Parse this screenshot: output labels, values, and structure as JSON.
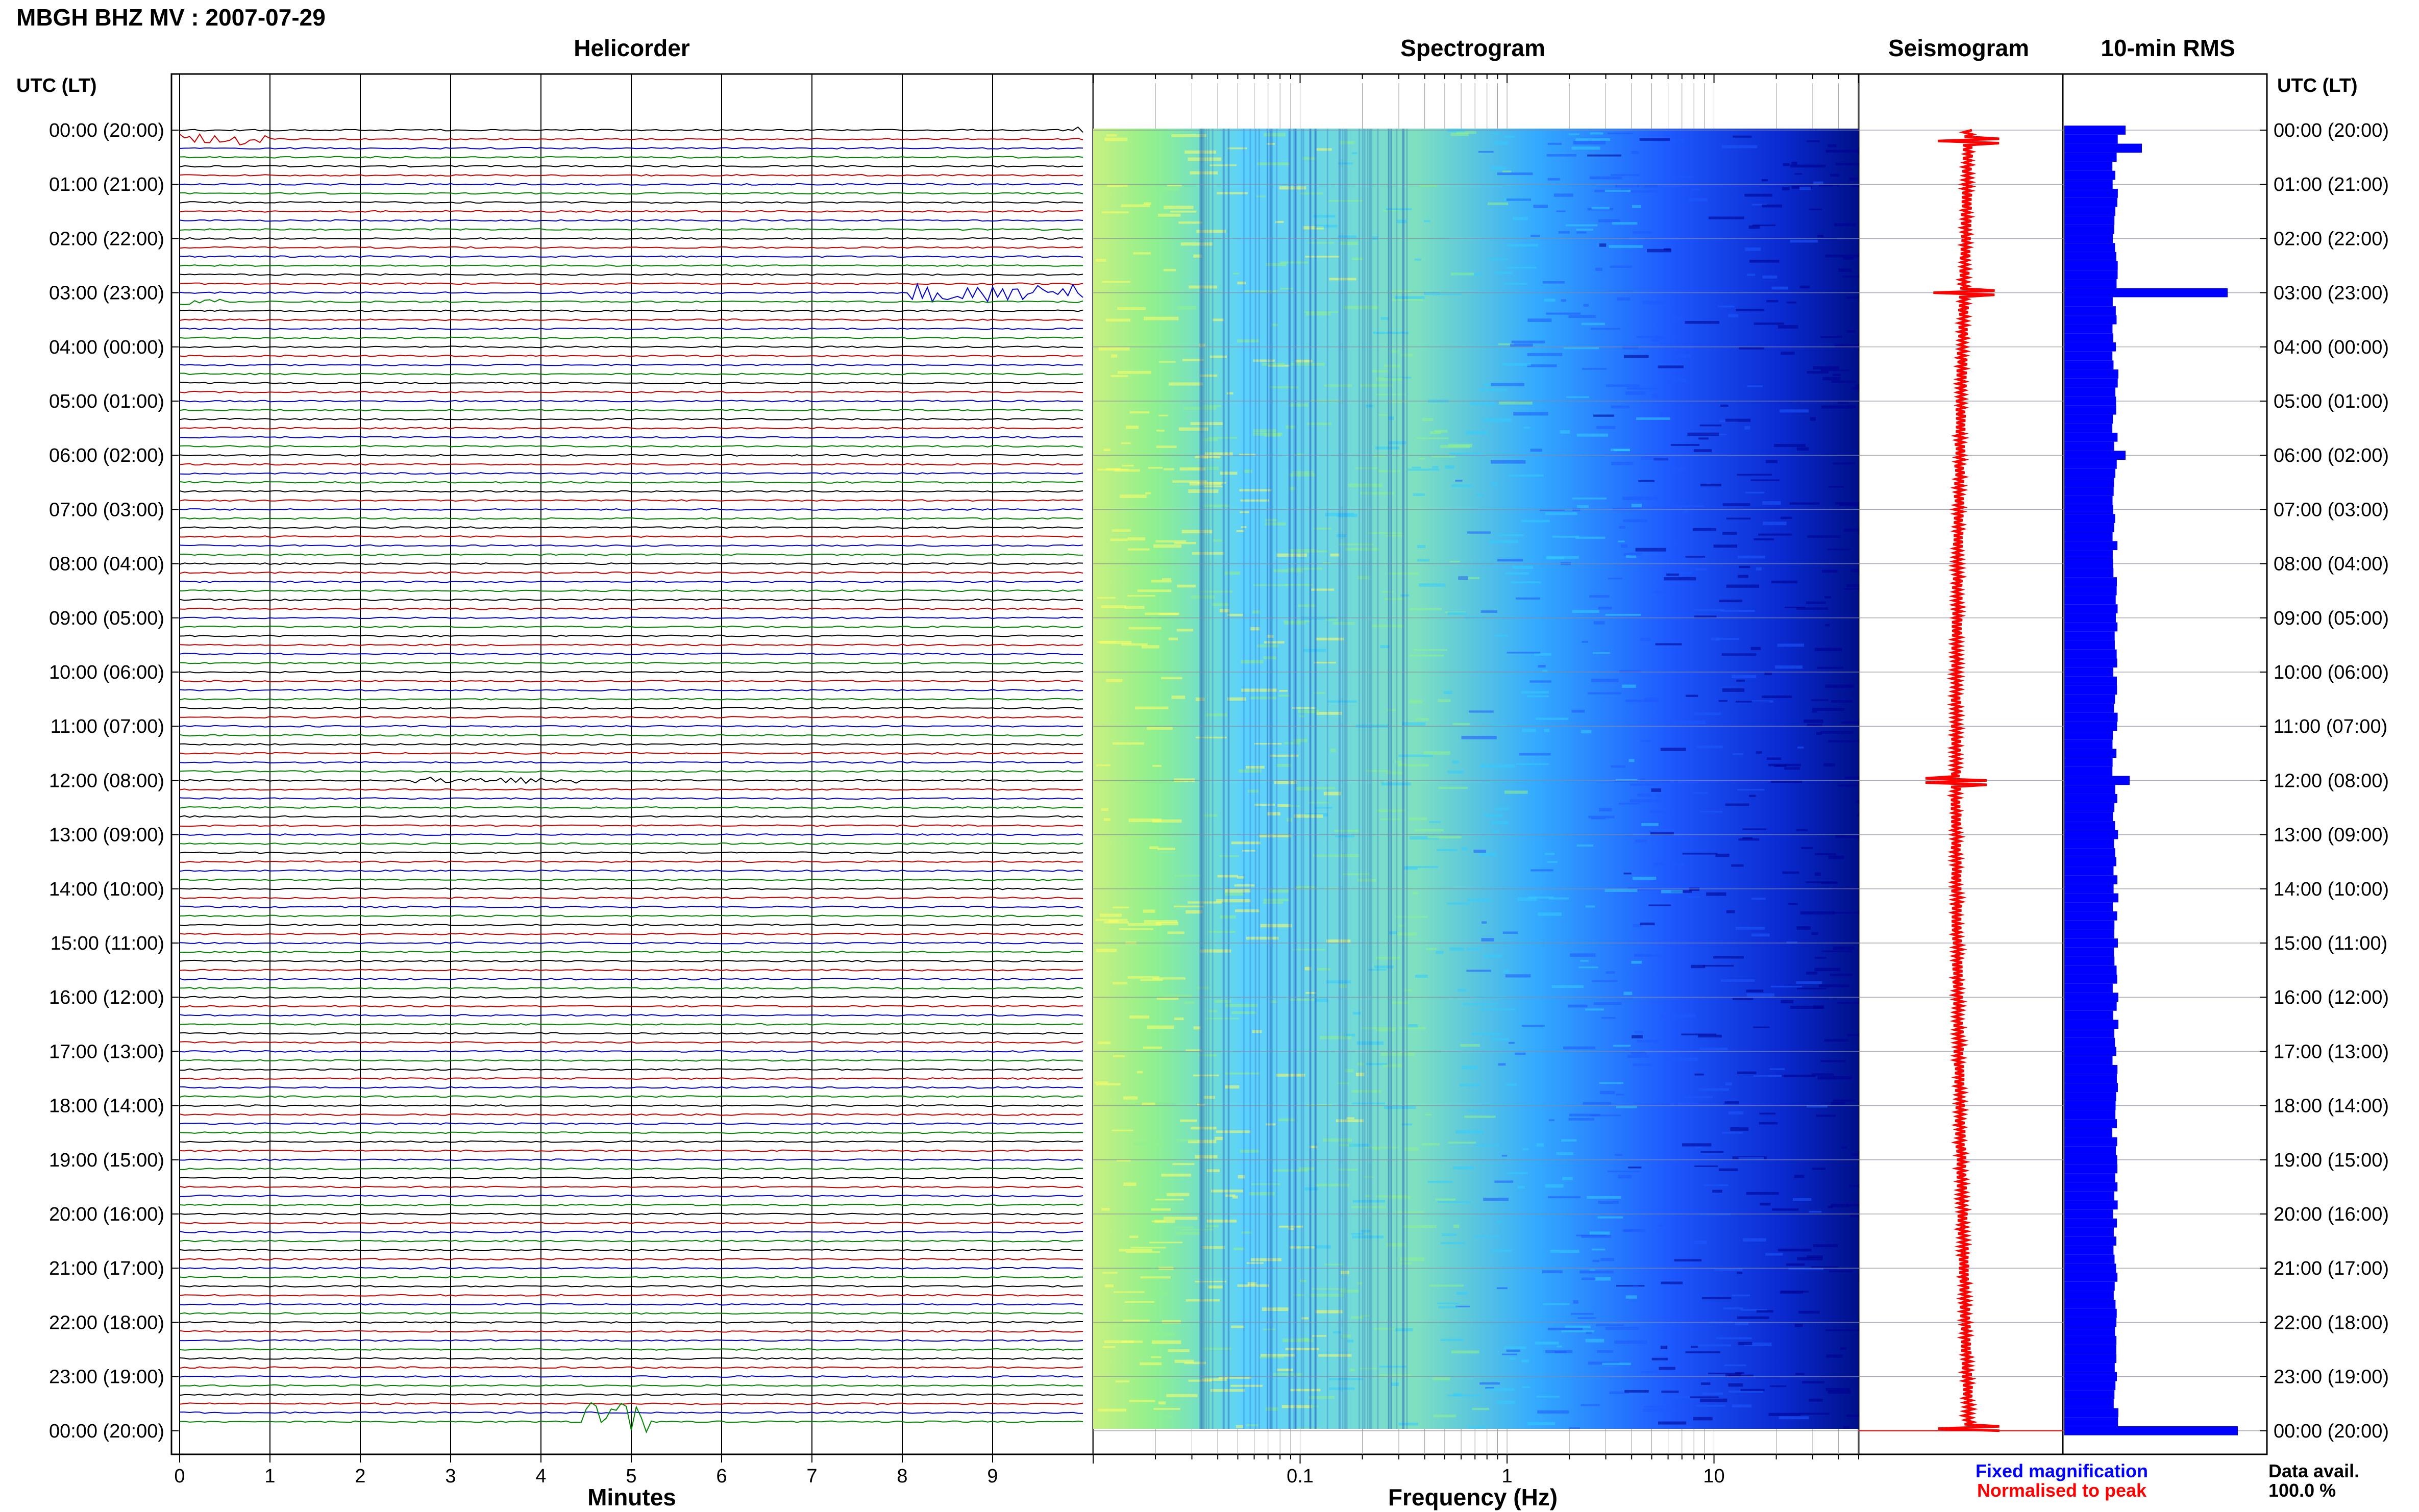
{
  "header": {
    "station_title": "MBGH BHZ MV : 2007-07-29"
  },
  "panels": {
    "helicorder": "Helicorder",
    "spectrogram": "Spectrogram",
    "seismogram": "Seismogram",
    "rms": "10-min RMS"
  },
  "axes": {
    "left_axis_label": "UTC (LT)",
    "right_axis_label": "UTC (LT)",
    "helicorder_xlabel": "Minutes",
    "spectrogram_xlabel": "Frequency (Hz)"
  },
  "legend": {
    "fixed": "Fixed magnification",
    "normalised": "Normalised to peak",
    "fixed_color": "#0000ff",
    "normalised_color": "#ff0000"
  },
  "footer": {
    "data_avail_label": "Data avail.",
    "data_avail_value": "100.0 %"
  },
  "colors": {
    "trace_cycle": [
      "#000000",
      "#c00000",
      "#0000c0",
      "#008000"
    ],
    "rms_bar": "#0000ff",
    "seismogram": "#ff0000"
  },
  "chart_data": [
    {
      "type": "line",
      "name": "helicorder",
      "title": "Helicorder",
      "xlabel": "Minutes",
      "x_ticks": [
        0,
        1,
        2,
        3,
        4,
        5,
        6,
        7,
        8,
        9
      ],
      "xlim": [
        0,
        10
      ],
      "y_tick_labels": [
        "00:00 (20:00)",
        "01:00 (21:00)",
        "02:00 (22:00)",
        "03:00 (23:00)",
        "04:00 (00:00)",
        "05:00 (01:00)",
        "06:00 (02:00)",
        "07:00 (03:00)",
        "08:00 (04:00)",
        "09:00 (05:00)",
        "10:00 (06:00)",
        "11:00 (07:00)",
        "12:00 (08:00)",
        "13:00 (09:00)",
        "14:00 (10:00)",
        "15:00 (11:00)",
        "16:00 (12:00)",
        "17:00 (13:00)",
        "18:00 (14:00)",
        "19:00 (15:00)",
        "20:00 (16:00)",
        "21:00 (17:00)",
        "22:00 (18:00)",
        "23:00 (19:00)",
        "00:00 (20:00)"
      ],
      "lines_per_hour": 6,
      "events": [
        {
          "hour": 0.17,
          "start_min": 0.0,
          "end_min": 1.0,
          "amp": 2.5
        },
        {
          "hour": 0.0,
          "start_min": 9.7,
          "end_min": 10.0,
          "amp": 1.5
        },
        {
          "hour": 3.0,
          "start_min": 8.1,
          "end_min": 10.0,
          "amp": 4.0
        },
        {
          "hour": 3.17,
          "start_min": 0.0,
          "end_min": 0.6,
          "amp": 1.5
        },
        {
          "hour": 12.0,
          "start_min": 2.6,
          "end_min": 4.4,
          "amp": 1.4
        },
        {
          "hour": 23.83,
          "start_min": 4.5,
          "end_min": 5.2,
          "amp": 9.0
        }
      ]
    },
    {
      "type": "heatmap",
      "name": "spectrogram",
      "title": "Spectrogram",
      "xlabel": "Frequency (Hz)",
      "x_scale": "log",
      "xlim": [
        0.01,
        50
      ],
      "x_ticks": [
        0.1,
        1,
        10
      ],
      "colormap": [
        "#ffff66",
        "#8ff08f",
        "#33ccff",
        "#1e5aff",
        "#000090"
      ]
    },
    {
      "type": "line",
      "name": "seismogram",
      "title": "Seismogram",
      "note": "normalised_to_peak",
      "spikes_at_hour": [
        0.2,
        3.0,
        12.0,
        24.0
      ]
    },
    {
      "type": "bar",
      "name": "rms",
      "title": "10-min RMS",
      "orientation": "horizontal",
      "bins_per_hour": 6,
      "baseline": 0.25,
      "peaks": [
        {
          "hour": 0.0,
          "value": 0.3
        },
        {
          "hour": 0.33,
          "value": 0.38
        },
        {
          "hour": 3.0,
          "value": 0.8
        },
        {
          "hour": 6.0,
          "value": 0.3
        },
        {
          "hour": 12.0,
          "value": 0.32
        },
        {
          "hour": 24.0,
          "value": 0.85
        }
      ]
    }
  ]
}
